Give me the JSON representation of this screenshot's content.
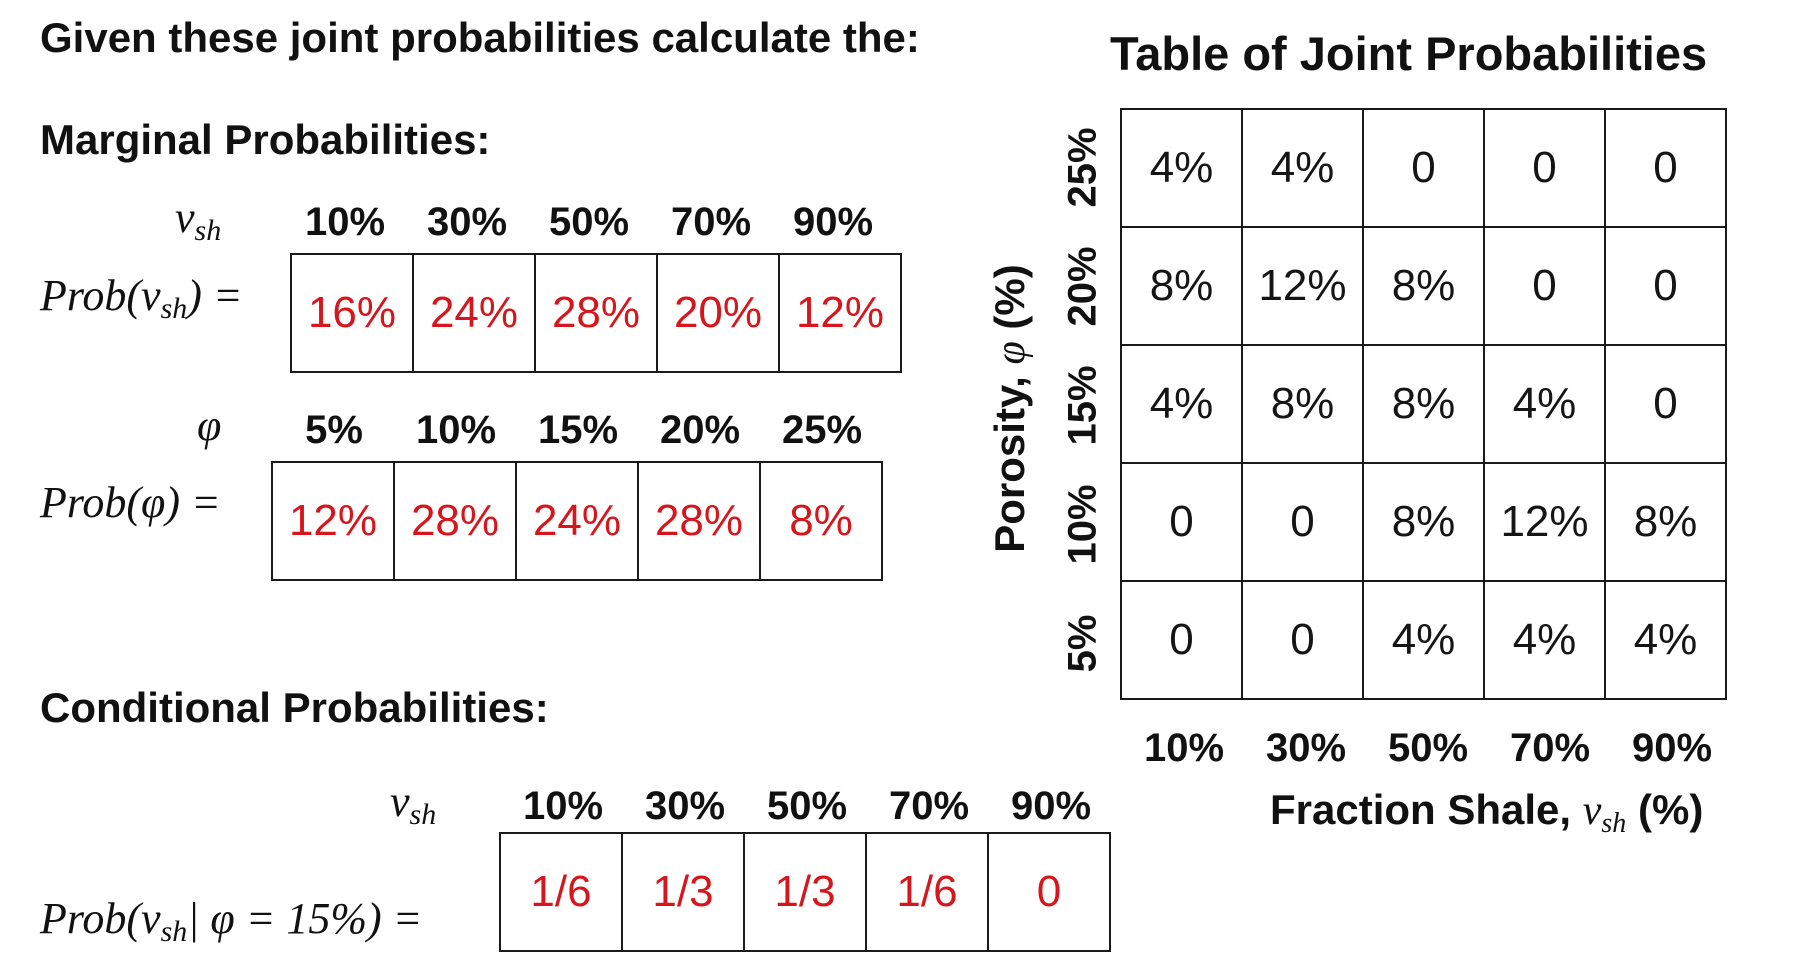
{
  "prompt": "Given these joint probabilities calculate the:",
  "marginal": {
    "heading": "Marginal Probabilities:",
    "vsh_symbol": "v",
    "vsh_sub": "sh",
    "vsh_prob_prefix": "Prob(v",
    "vsh_prob_suffix": ") =",
    "vsh_headers": [
      "10%",
      "30%",
      "50%",
      "70%",
      "90%"
    ],
    "vsh_values": [
      "16%",
      "24%",
      "28%",
      "20%",
      "12%"
    ],
    "phi_symbol": "φ",
    "phi_prob_label": "Prob(φ) =",
    "phi_headers": [
      "5%",
      "10%",
      "15%",
      "20%",
      "25%"
    ],
    "phi_values": [
      "12%",
      "28%",
      "24%",
      "28%",
      "8%"
    ]
  },
  "conditional": {
    "heading": "Conditional Probabilities:",
    "vsh_symbol": "v",
    "vsh_sub": "sh",
    "prob_prefix": "Prob(v",
    "prob_suffix": "| φ = 15%) =",
    "headers": [
      "10%",
      "30%",
      "50%",
      "70%",
      "90%"
    ],
    "values": [
      "1/6",
      "1/3",
      "1/3",
      "1/6",
      "0"
    ]
  },
  "joint": {
    "title": "Table of Joint Probabilities",
    "ylabel_text": "Porosity,",
    "ylabel_symbol": "φ",
    "ylabel_unit": "(%)",
    "xlabel_text": "Fraction Shale,",
    "xlabel_symbol": "v",
    "xlabel_sub": "sh",
    "xlabel_unit": "(%)",
    "y_ticks": [
      "25%",
      "20%",
      "15%",
      "10%",
      "5%"
    ],
    "x_ticks": [
      "10%",
      "30%",
      "50%",
      "70%",
      "90%"
    ],
    "rows": [
      [
        "4%",
        "4%",
        "0",
        "0",
        "0"
      ],
      [
        "8%",
        "12%",
        "8%",
        "0",
        "0"
      ],
      [
        "4%",
        "8%",
        "8%",
        "4%",
        "0"
      ],
      [
        "0",
        "0",
        "8%",
        "12%",
        "8%"
      ],
      [
        "0",
        "0",
        "4%",
        "4%",
        "4%"
      ]
    ]
  },
  "colors": {
    "answer": "#d6161c",
    "text": "#111111",
    "border": "#1a1a1a"
  }
}
